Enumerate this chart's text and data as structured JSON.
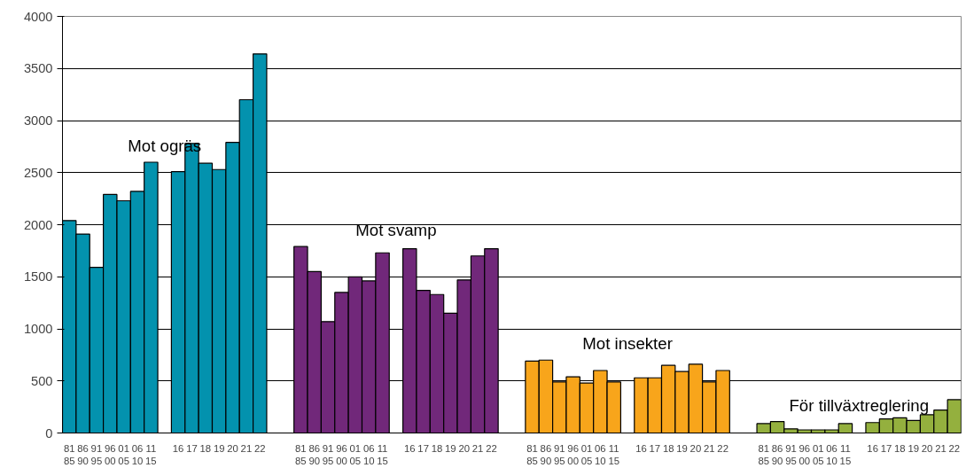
{
  "chart_data": {
    "type": "bar",
    "categories": [
      "81\n85",
      "86\n90",
      "91\n95",
      "96\n00",
      "01\n05",
      "06\n10",
      "11\n15",
      null,
      "16",
      "17",
      "18",
      "19",
      "20",
      "21",
      "22",
      null,
      null,
      "81\n85",
      "86\n90",
      "91\n95",
      "96\n00",
      "01\n05",
      "06\n10",
      "11\n15",
      null,
      "16",
      "17",
      "18",
      "19",
      "20",
      "21",
      "22",
      null,
      null,
      "81\n85",
      "86\n90",
      "91\n95",
      "96\n00",
      "01\n05",
      "06\n10",
      "11\n15",
      null,
      "16",
      "17",
      "18",
      "19",
      "20",
      "21",
      "22",
      null,
      null,
      "81\n85",
      "86\n90",
      "91\n95",
      "96\n00",
      "01\n05",
      "06\n10",
      "11\n15",
      null,
      "16",
      "17",
      "18",
      "19",
      "20",
      "21",
      "22"
    ],
    "series": [
      {
        "name": "Mot ogräs",
        "color": "#0392ae",
        "values": [
          2040,
          1910,
          1590,
          2290,
          2230,
          2320,
          2600,
          null,
          2510,
          2780,
          2590,
          2530,
          2790,
          3200,
          3640,
          null,
          null,
          null,
          null,
          null,
          null,
          null,
          null,
          null,
          null,
          null,
          null,
          null,
          null,
          null,
          null,
          null,
          null,
          null,
          null,
          null,
          null,
          null,
          null,
          null,
          null,
          null,
          null,
          null,
          null,
          null,
          null,
          null,
          null,
          null,
          null,
          null,
          null,
          null,
          null,
          null,
          null,
          null,
          null,
          null,
          null,
          null,
          null,
          null,
          null,
          null
        ]
      },
      {
        "name": "Mot svamp",
        "color": "#71287a",
        "values": [
          null,
          null,
          null,
          null,
          null,
          null,
          null,
          null,
          null,
          null,
          null,
          null,
          null,
          null,
          null,
          null,
          null,
          1790,
          1550,
          1070,
          1350,
          1500,
          1460,
          1730,
          null,
          1770,
          1370,
          1330,
          1150,
          1470,
          1700,
          1770,
          null,
          null,
          null,
          null,
          null,
          null,
          null,
          null,
          null,
          null,
          null,
          null,
          null,
          null,
          null,
          null,
          null,
          null,
          null,
          null,
          null,
          null,
          null,
          null,
          null,
          null,
          null,
          null,
          null,
          null,
          null,
          null,
          null,
          null
        ]
      },
      {
        "name": "Mot insekter",
        "color": "#f8a51b",
        "values": [
          null,
          null,
          null,
          null,
          null,
          null,
          null,
          null,
          null,
          null,
          null,
          null,
          null,
          null,
          null,
          null,
          null,
          null,
          null,
          null,
          null,
          null,
          null,
          null,
          null,
          null,
          null,
          null,
          null,
          null,
          null,
          null,
          null,
          null,
          690,
          700,
          490,
          540,
          480,
          600,
          490,
          null,
          530,
          530,
          650,
          590,
          660,
          490,
          600,
          null,
          null,
          null,
          null,
          null,
          null,
          null,
          null,
          null,
          null,
          null,
          null,
          null,
          null,
          null,
          null,
          null
        ]
      },
      {
        "name": "För tillväxtreglering",
        "color": "#94b03e",
        "values": [
          null,
          null,
          null,
          null,
          null,
          null,
          null,
          null,
          null,
          null,
          null,
          null,
          null,
          null,
          null,
          null,
          null,
          null,
          null,
          null,
          null,
          null,
          null,
          null,
          null,
          null,
          null,
          null,
          null,
          null,
          null,
          null,
          null,
          null,
          null,
          null,
          null,
          null,
          null,
          null,
          null,
          null,
          null,
          null,
          null,
          null,
          null,
          null,
          null,
          null,
          null,
          90,
          110,
          40,
          30,
          30,
          30,
          90,
          null,
          100,
          135,
          145,
          120,
          175,
          220,
          320
        ]
      }
    ],
    "ylim": [
      0,
      4000
    ],
    "yticks": [
      0,
      500,
      1000,
      1500,
      2000,
      2500,
      3000,
      3500,
      4000
    ],
    "grid": "y"
  }
}
